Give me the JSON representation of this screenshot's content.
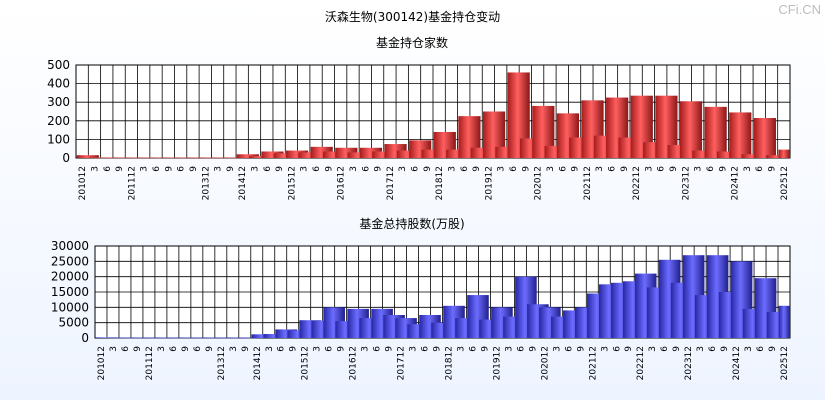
{
  "page": {
    "title": "沃森生物(300142)基金持仓变动",
    "brand": "CFi.CN"
  },
  "chart_data": [
    {
      "type": "bar",
      "title": "基金持仓家数",
      "color": "#ff2a2a",
      "ylim": [
        0,
        500
      ],
      "yticks": [
        "500",
        "400",
        "300",
        "200",
        "100",
        "0"
      ],
      "ytick_values": [
        500,
        400,
        300,
        200,
        100,
        0
      ],
      "categories": [
        "201012",
        "3",
        "6",
        "9",
        "201112",
        "3",
        "6",
        "9",
        "6",
        "9",
        "201312",
        "3",
        "9",
        "201412",
        "3",
        "6",
        "9",
        "201512",
        "3",
        "6",
        "9",
        "201612",
        "3",
        "6",
        "9",
        "201712",
        "3",
        "6",
        "9",
        "201812",
        "3",
        "6",
        "9",
        "201912",
        "3",
        "6",
        "9",
        "202012",
        "3",
        "6",
        "9",
        "202112",
        "3",
        "6",
        "9",
        "202212",
        "3",
        "6",
        "9",
        "202312",
        "3",
        "6",
        "9",
        "202412",
        "3",
        "6",
        "9",
        "202512"
      ],
      "values": [
        15,
        2,
        2,
        2,
        2,
        2,
        2,
        2,
        2,
        2,
        2,
        2,
        2,
        20,
        10,
        35,
        25,
        40,
        30,
        60,
        35,
        55,
        30,
        55,
        35,
        75,
        40,
        95,
        45,
        140,
        45,
        225,
        55,
        250,
        60,
        460,
        105,
        280,
        65,
        240,
        110,
        310,
        120,
        325,
        110,
        335,
        85,
        335,
        70,
        305,
        40,
        275,
        35,
        245,
        20,
        215,
        15,
        45
      ]
    },
    {
      "type": "bar",
      "title": "基金总持股数(万股)",
      "color": "#3b3bff",
      "ylim": [
        0,
        30000
      ],
      "yticks": [
        "30000",
        "25000",
        "20000",
        "15000",
        "10000",
        "5000",
        "0"
      ],
      "ytick_values": [
        30000,
        25000,
        20000,
        15000,
        10000,
        5000,
        0
      ],
      "categories": [
        "201012",
        "3",
        "6",
        "9",
        "201112",
        "3",
        "6",
        "9",
        "6",
        "9",
        "201312",
        "3",
        "9",
        "201412",
        "3",
        "6",
        "9",
        "201512",
        "3",
        "6",
        "9",
        "201612",
        "3",
        "6",
        "9",
        "201712",
        "3",
        "6",
        "9",
        "201812",
        "3",
        "6",
        "9",
        "201912",
        "3",
        "6",
        "9",
        "202012",
        "3",
        "6",
        "9",
        "202112",
        "3",
        "6",
        "9",
        "202212",
        "3",
        "6",
        "9",
        "202312",
        "3",
        "6",
        "9",
        "202412",
        "3",
        "6",
        "9",
        "202512"
      ],
      "values": [
        200,
        100,
        100,
        100,
        100,
        100,
        100,
        100,
        100,
        100,
        100,
        100,
        100,
        1200,
        1300,
        2800,
        2500,
        5800,
        5700,
        10000,
        5500,
        9500,
        6500,
        9500,
        7500,
        6500,
        4500,
        7500,
        5000,
        10500,
        6500,
        14000,
        6000,
        10000,
        7000,
        20000,
        11000,
        10000,
        7000,
        9000,
        10000,
        14500,
        17500,
        18000,
        18500,
        21000,
        16500,
        25500,
        18000,
        27000,
        14000,
        27000,
        15000,
        25000,
        9500,
        19500,
        8500,
        10500
      ]
    }
  ]
}
